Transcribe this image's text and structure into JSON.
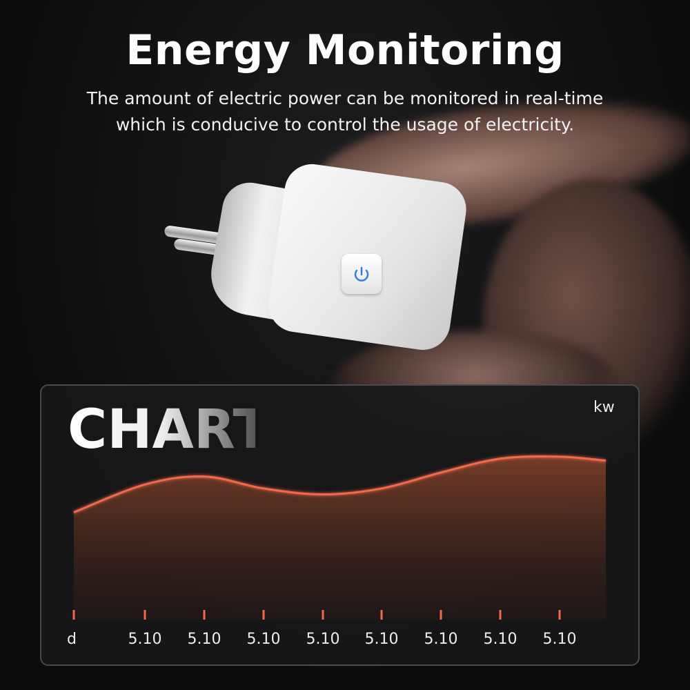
{
  "header": {
    "title": "Energy Monitoring",
    "subtitle_lines": [
      "The amount of electric power can be monitored in real-time",
      "which is conducive to control the usage of electricity."
    ]
  },
  "product": {
    "icon": "power-icon",
    "button_color": "#2f7fe0"
  },
  "chart_data": {
    "type": "area",
    "title": "CHART",
    "ylabel": "kw",
    "xlabel": "d",
    "x_tick_labels": [
      "5.10",
      "5.10",
      "5.10",
      "5.10",
      "5.10",
      "5.10",
      "5.10",
      "5.10"
    ],
    "values": [
      54,
      68,
      72,
      66,
      63,
      66,
      74,
      81,
      82,
      80
    ],
    "ylim": [
      0,
      100
    ],
    "grid": false,
    "line_color": "#f26a4b",
    "fill_color": "#7a3e28"
  }
}
